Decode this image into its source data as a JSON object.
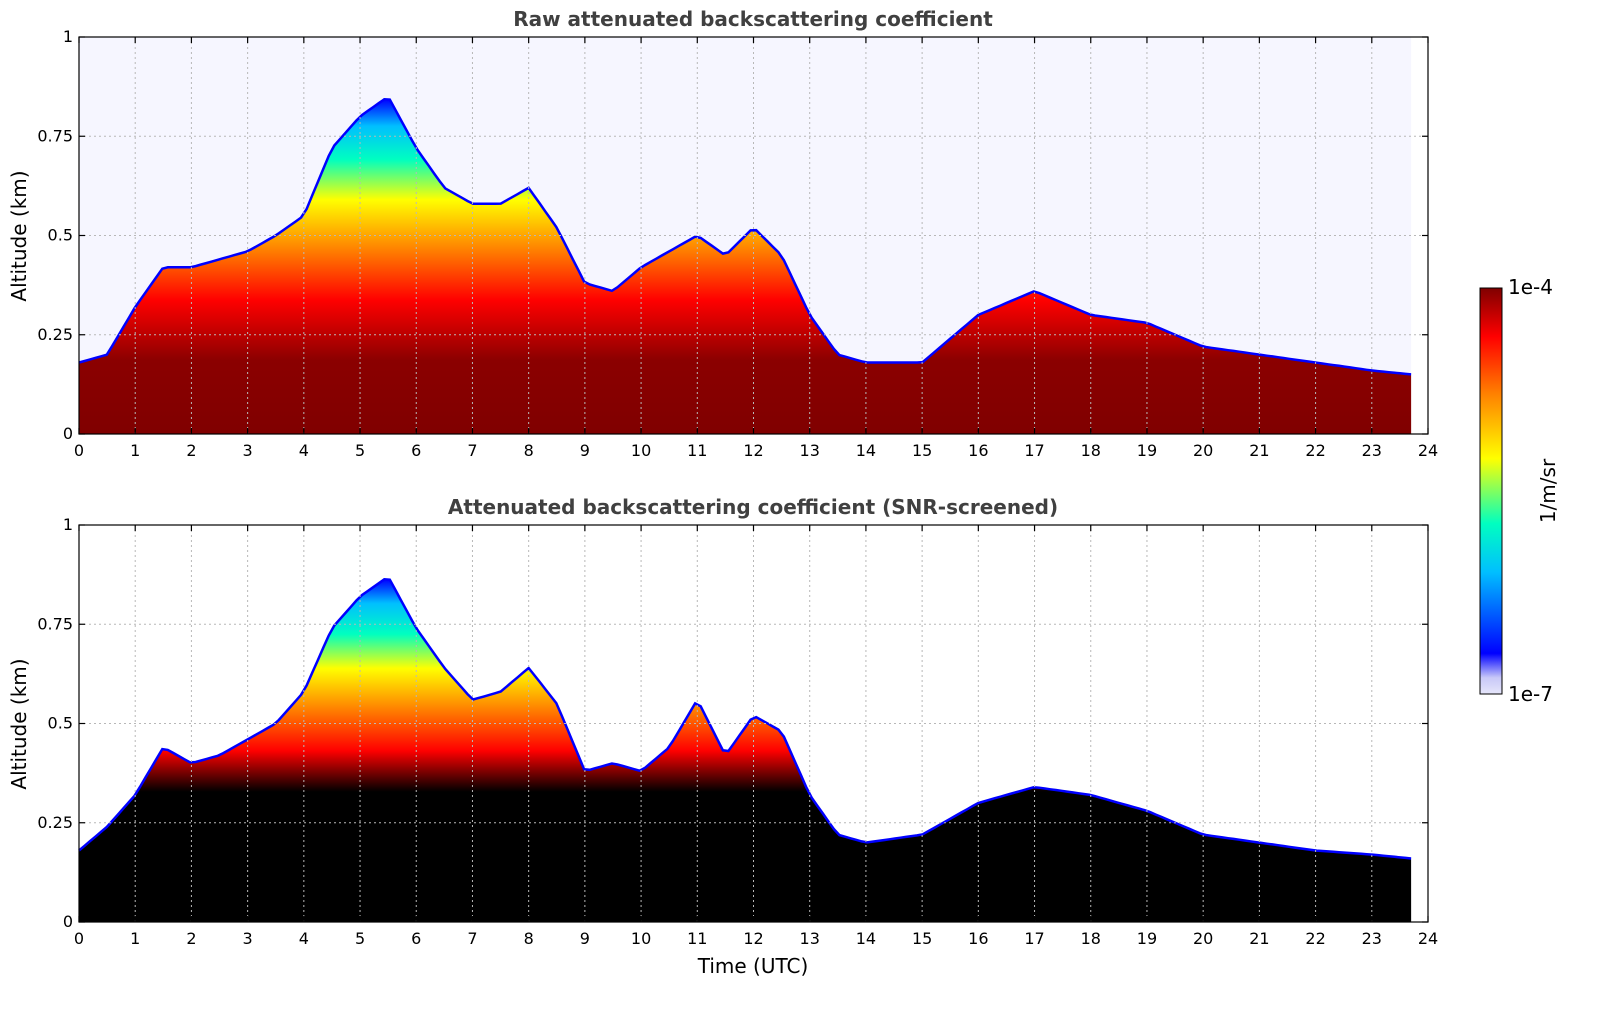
{
  "chart_data": [
    {
      "type": "heatmap",
      "title": "Raw attenuated backscattering coefficient",
      "xlabel": "",
      "ylabel": "Altitude (km)",
      "xlim": [
        0,
        24
      ],
      "ylim": [
        0,
        1
      ],
      "xticks": [
        0,
        1,
        2,
        3,
        4,
        5,
        6,
        7,
        8,
        9,
        10,
        11,
        12,
        13,
        14,
        15,
        16,
        17,
        18,
        19,
        20,
        21,
        22,
        23,
        24
      ],
      "yticks": [
        0,
        0.25,
        0.5,
        0.75,
        1
      ],
      "ytick_labels": [
        "0",
        "0.25",
        "0.5",
        "0.75",
        "1"
      ],
      "grid": true,
      "data_end_time": 23.7,
      "boundary_layer_top_km": [
        [
          0,
          0.18
        ],
        [
          0.5,
          0.2
        ],
        [
          1,
          0.32
        ],
        [
          1.5,
          0.42
        ],
        [
          2,
          0.42
        ],
        [
          2.5,
          0.44
        ],
        [
          3,
          0.46
        ],
        [
          3.5,
          0.5
        ],
        [
          4,
          0.55
        ],
        [
          4.5,
          0.72
        ],
        [
          5,
          0.8
        ],
        [
          5.5,
          0.85
        ],
        [
          6,
          0.72
        ],
        [
          6.5,
          0.62
        ],
        [
          7,
          0.58
        ],
        [
          7.5,
          0.58
        ],
        [
          8,
          0.62
        ],
        [
          8.5,
          0.52
        ],
        [
          9,
          0.38
        ],
        [
          9.5,
          0.36
        ],
        [
          10,
          0.42
        ],
        [
          10.5,
          0.46
        ],
        [
          11,
          0.5
        ],
        [
          11.5,
          0.45
        ],
        [
          12,
          0.52
        ],
        [
          12.5,
          0.45
        ],
        [
          13,
          0.3
        ],
        [
          13.5,
          0.2
        ],
        [
          14,
          0.18
        ],
        [
          15,
          0.18
        ],
        [
          16,
          0.3
        ],
        [
          17,
          0.36
        ],
        [
          18,
          0.3
        ],
        [
          19,
          0.28
        ],
        [
          20,
          0.22
        ],
        [
          21,
          0.2
        ],
        [
          22,
          0.18
        ],
        [
          23,
          0.16
        ],
        [
          23.7,
          0.15
        ]
      ]
    },
    {
      "type": "heatmap",
      "title": "Attenuated backscattering coefficient (SNR-screened)",
      "xlabel": "Time (UTC)",
      "ylabel": "Altitude (km)",
      "xlim": [
        0,
        24
      ],
      "ylim": [
        0,
        1
      ],
      "xticks": [
        0,
        1,
        2,
        3,
        4,
        5,
        6,
        7,
        8,
        9,
        10,
        11,
        12,
        13,
        14,
        15,
        16,
        17,
        18,
        19,
        20,
        21,
        22,
        23,
        24
      ],
      "yticks": [
        0,
        0.25,
        0.5,
        0.75,
        1
      ],
      "ytick_labels": [
        "0",
        "0.25",
        "0.5",
        "0.75",
        "1"
      ],
      "grid": true,
      "data_end_time": 23.7,
      "boundary_layer_top_km": [
        [
          0,
          0.18
        ],
        [
          0.5,
          0.24
        ],
        [
          1,
          0.32
        ],
        [
          1.5,
          0.44
        ],
        [
          2,
          0.4
        ],
        [
          2.5,
          0.42
        ],
        [
          3,
          0.46
        ],
        [
          3.5,
          0.5
        ],
        [
          4,
          0.58
        ],
        [
          4.5,
          0.74
        ],
        [
          5,
          0.82
        ],
        [
          5.5,
          0.87
        ],
        [
          6,
          0.74
        ],
        [
          6.5,
          0.64
        ],
        [
          7,
          0.56
        ],
        [
          7.5,
          0.58
        ],
        [
          8,
          0.64
        ],
        [
          8.5,
          0.55
        ],
        [
          9,
          0.38
        ],
        [
          9.5,
          0.4
        ],
        [
          10,
          0.38
        ],
        [
          10.5,
          0.44
        ],
        [
          11,
          0.56
        ],
        [
          11.5,
          0.42
        ],
        [
          12,
          0.52
        ],
        [
          12.5,
          0.48
        ],
        [
          13,
          0.32
        ],
        [
          13.5,
          0.22
        ],
        [
          14,
          0.2
        ],
        [
          15,
          0.22
        ],
        [
          16,
          0.3
        ],
        [
          17,
          0.34
        ],
        [
          18,
          0.32
        ],
        [
          19,
          0.28
        ],
        [
          20,
          0.22
        ],
        [
          21,
          0.2
        ],
        [
          22,
          0.18
        ],
        [
          23,
          0.17
        ],
        [
          23.7,
          0.16
        ]
      ]
    }
  ],
  "colorbar": {
    "label": "1/m/sr",
    "max_label": "1e-4",
    "min_label": "1e-7",
    "scale": "log",
    "colormap": "jet",
    "colors": [
      "#e6e6fa",
      "#0000ff",
      "#00bfff",
      "#00ffc0",
      "#ffff00",
      "#ff8000",
      "#ff0000",
      "#800000"
    ]
  }
}
